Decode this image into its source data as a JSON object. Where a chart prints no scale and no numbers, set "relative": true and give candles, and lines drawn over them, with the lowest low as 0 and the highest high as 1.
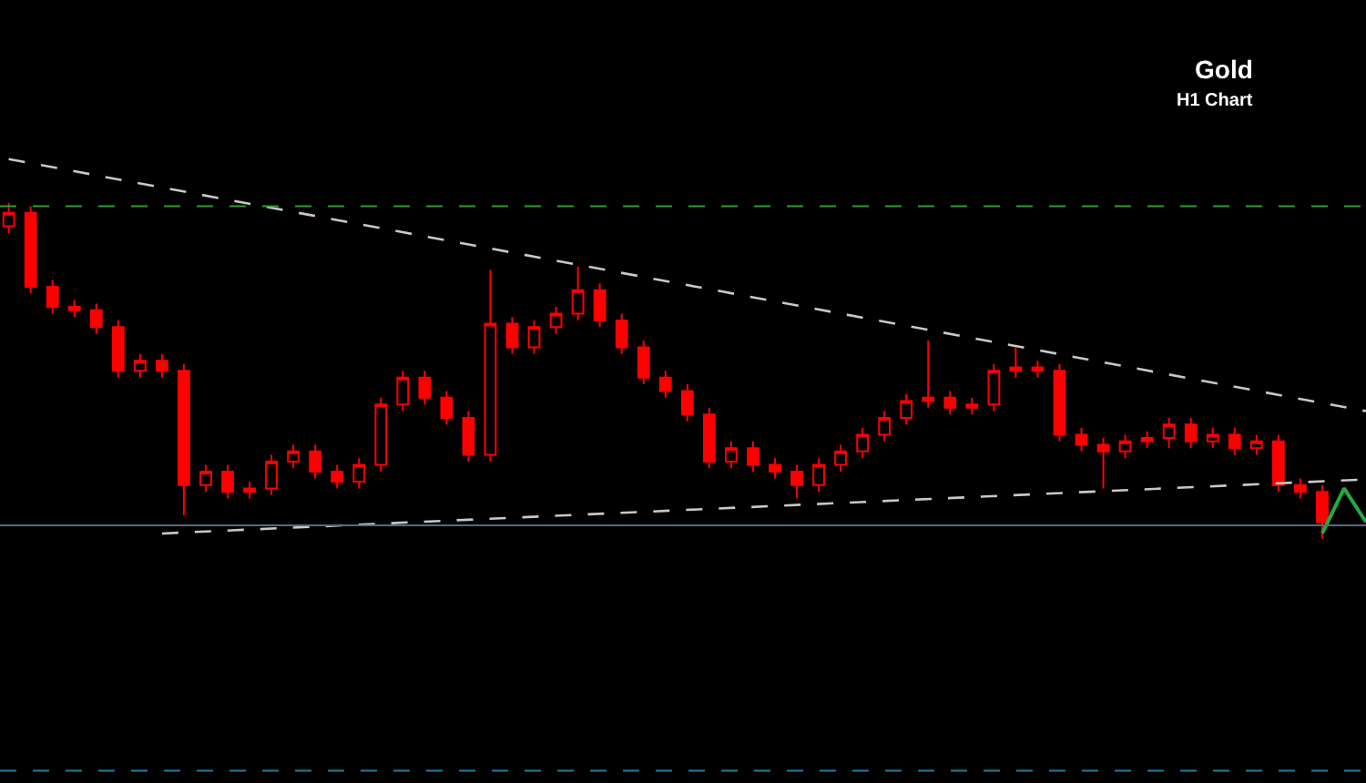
{
  "chart_data": {
    "type": "candlestick",
    "title": "Gold",
    "subtitle": "H1 Chart",
    "relative": true,
    "color": "#ff0000",
    "tick_labels": false,
    "categories": [
      null,
      null,
      null,
      null,
      null,
      null,
      null,
      null,
      null,
      null,
      null,
      null,
      null,
      null,
      null,
      null,
      null,
      null,
      null,
      null,
      null,
      null,
      null,
      null,
      null,
      null,
      null,
      null,
      null,
      null,
      null,
      null,
      null,
      null,
      null,
      null,
      null,
      null,
      null,
      null,
      null,
      null,
      null,
      null,
      null,
      null,
      null,
      null,
      null,
      null,
      null,
      null,
      null,
      null,
      null,
      null,
      null,
      null,
      null,
      null,
      null,
      null,
      null
    ],
    "ohlc": [
      [
        0.93,
        1,
        0.91,
        0.97
      ],
      [
        0.97,
        0.99,
        0.73,
        0.75
      ],
      [
        0.75,
        0.77,
        0.67,
        0.69
      ],
      [
        0.69,
        0.71,
        0.66,
        0.68
      ],
      [
        0.68,
        0.7,
        0.61,
        0.63
      ],
      [
        0.63,
        0.65,
        0.48,
        0.5
      ],
      [
        0.5,
        0.55,
        0.48,
        0.53
      ],
      [
        0.53,
        0.55,
        0.48,
        0.5
      ],
      [
        0.5,
        0.52,
        0.07,
        0.16
      ],
      [
        0.16,
        0.22,
        0.14,
        0.2
      ],
      [
        0.2,
        0.22,
        0.12,
        0.14
      ],
      [
        0.14,
        0.17,
        0.12,
        0.15
      ],
      [
        0.15,
        0.25,
        0.13,
        0.23
      ],
      [
        0.23,
        0.28,
        0.21,
        0.26
      ],
      [
        0.26,
        0.28,
        0.18,
        0.2
      ],
      [
        0.2,
        0.22,
        0.15,
        0.17
      ],
      [
        0.17,
        0.24,
        0.15,
        0.22
      ],
      [
        0.22,
        0.42,
        0.2,
        0.4
      ],
      [
        0.4,
        0.5,
        0.38,
        0.48
      ],
      [
        0.48,
        0.5,
        0.4,
        0.42
      ],
      [
        0.42,
        0.44,
        0.34,
        0.36
      ],
      [
        0.36,
        0.38,
        0.23,
        0.25
      ],
      [
        0.25,
        0.8,
        0.23,
        0.64
      ],
      [
        0.64,
        0.66,
        0.55,
        0.57
      ],
      [
        0.57,
        0.65,
        0.55,
        0.63
      ],
      [
        0.63,
        0.69,
        0.61,
        0.67
      ],
      [
        0.67,
        0.81,
        0.65,
        0.74
      ],
      [
        0.74,
        0.76,
        0.63,
        0.65
      ],
      [
        0.65,
        0.67,
        0.55,
        0.57
      ],
      [
        0.57,
        0.59,
        0.46,
        0.48
      ],
      [
        0.48,
        0.5,
        0.42,
        0.44
      ],
      [
        0.44,
        0.46,
        0.35,
        0.37
      ],
      [
        0.37,
        0.39,
        0.21,
        0.23
      ],
      [
        0.23,
        0.29,
        0.21,
        0.27
      ],
      [
        0.27,
        0.29,
        0.2,
        0.22
      ],
      [
        0.22,
        0.24,
        0.18,
        0.2
      ],
      [
        0.2,
        0.22,
        0.12,
        0.16
      ],
      [
        0.16,
        0.24,
        0.14,
        0.22
      ],
      [
        0.22,
        0.28,
        0.2,
        0.26
      ],
      [
        0.26,
        0.33,
        0.24,
        0.31
      ],
      [
        0.31,
        0.38,
        0.29,
        0.36
      ],
      [
        0.36,
        0.43,
        0.34,
        0.41
      ],
      [
        0.41,
        0.59,
        0.39,
        0.42
      ],
      [
        0.42,
        0.44,
        0.37,
        0.39
      ],
      [
        0.39,
        0.42,
        0.37,
        0.4
      ],
      [
        0.4,
        0.52,
        0.38,
        0.5
      ],
      [
        0.5,
        0.57,
        0.48,
        0.51
      ],
      [
        0.51,
        0.53,
        0.48,
        0.5
      ],
      [
        0.5,
        0.52,
        0.29,
        0.31
      ],
      [
        0.31,
        0.33,
        0.26,
        0.28
      ],
      [
        0.28,
        0.3,
        0.15,
        0.26
      ],
      [
        0.26,
        0.31,
        0.24,
        0.29
      ],
      [
        0.29,
        0.32,
        0.27,
        0.3
      ],
      [
        0.3,
        0.36,
        0.27,
        0.34
      ],
      [
        0.34,
        0.36,
        0.27,
        0.29
      ],
      [
        0.29,
        0.33,
        0.27,
        0.31
      ],
      [
        0.31,
        0.33,
        0.25,
        0.27
      ],
      [
        0.27,
        0.31,
        0.25,
        0.29
      ],
      [
        0.29,
        0.31,
        0.14,
        0.16
      ],
      [
        0.16,
        0.18,
        0.12,
        0.14
      ],
      [
        0.14,
        0.16,
        0,
        0.05
      ],
      null,
      null
    ],
    "series": [
      {
        "type": "line",
        "color": "#c8c8c8",
        "line_style": "dashed",
        "values": [
          1.13,
          null,
          null,
          null,
          null,
          null,
          null,
          null,
          null,
          null,
          null,
          null,
          null,
          null,
          null,
          null,
          null,
          null,
          null,
          null,
          null,
          null,
          null,
          null,
          null,
          null,
          null,
          null,
          null,
          null,
          null,
          null,
          null,
          null,
          null,
          null,
          null,
          null,
          null,
          null,
          null,
          null,
          null,
          null,
          null,
          null,
          null,
          null,
          null,
          null,
          null,
          null,
          null,
          null,
          null,
          null,
          null,
          null,
          null,
          null,
          null,
          null,
          0.38
        ]
      },
      {
        "type": "line",
        "color": "#c8c8c8",
        "line_style": "dashed",
        "values": [
          null,
          null,
          null,
          null,
          null,
          null,
          null,
          0.016,
          null,
          null,
          null,
          null,
          null,
          null,
          null,
          null,
          null,
          null,
          null,
          null,
          null,
          null,
          null,
          null,
          null,
          null,
          null,
          null,
          null,
          null,
          null,
          null,
          null,
          null,
          null,
          null,
          null,
          null,
          null,
          null,
          null,
          null,
          null,
          null,
          null,
          null,
          null,
          null,
          null,
          null,
          null,
          null,
          null,
          null,
          null,
          null,
          null,
          null,
          null,
          null,
          null,
          null,
          0.177
        ]
      },
      {
        "type": "line",
        "color": "#22aa44",
        "line_style": "solid",
        "values": [
          null,
          null,
          null,
          null,
          null,
          null,
          null,
          null,
          null,
          null,
          null,
          null,
          null,
          null,
          null,
          null,
          null,
          null,
          null,
          null,
          null,
          null,
          null,
          null,
          null,
          null,
          null,
          null,
          null,
          null,
          null,
          null,
          null,
          null,
          null,
          null,
          null,
          null,
          null,
          null,
          null,
          null,
          null,
          null,
          null,
          null,
          null,
          null,
          null,
          null,
          null,
          null,
          null,
          null,
          null,
          null,
          null,
          null,
          null,
          null,
          0.016,
          0.15,
          0.05
        ]
      }
    ],
    "ref_lines": [
      {
        "axis": "y",
        "value": 0.99,
        "color": "#2e9e2e",
        "line_style": "dashed"
      },
      {
        "axis": "y",
        "value": 0.04,
        "color": "#5a6a80",
        "line_style": "solid"
      },
      {
        "axis": "y",
        "value": -0.69,
        "color": "#1e7fa0",
        "line_style": "dashed"
      }
    ]
  }
}
